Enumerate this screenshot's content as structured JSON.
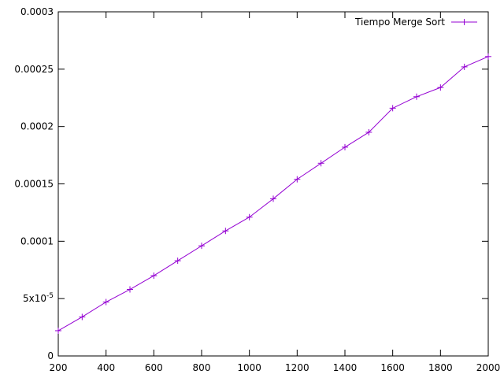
{
  "chart_data": {
    "type": "line",
    "title": "",
    "xlabel": "",
    "ylabel": "",
    "xlim": [
      200,
      2000
    ],
    "ylim": [
      0,
      0.0003
    ],
    "x_ticks": [
      {
        "value": 200,
        "label": "200"
      },
      {
        "value": 400,
        "label": "400"
      },
      {
        "value": 600,
        "label": "600"
      },
      {
        "value": 800,
        "label": "800"
      },
      {
        "value": 1000,
        "label": "1000"
      },
      {
        "value": 1200,
        "label": "1200"
      },
      {
        "value": 1400,
        "label": "1400"
      },
      {
        "value": 1600,
        "label": "1600"
      },
      {
        "value": 1800,
        "label": "1800"
      },
      {
        "value": 2000,
        "label": "2000"
      }
    ],
    "y_ticks": [
      {
        "value": 0,
        "label": "0"
      },
      {
        "value": 5e-05,
        "label": "5x10",
        "sup": "-5"
      },
      {
        "value": 0.0001,
        "label": "0.0001"
      },
      {
        "value": 0.00015,
        "label": "0.00015"
      },
      {
        "value": 0.0002,
        "label": "0.0002"
      },
      {
        "value": 0.00025,
        "label": "0.00025"
      },
      {
        "value": 0.0003,
        "label": "0.0003"
      }
    ],
    "grid": false,
    "legend_position": "top-right",
    "series": [
      {
        "name": "Tiempo Merge Sort",
        "color": "#9400d3",
        "marker": "plus",
        "x": [
          200,
          300,
          400,
          500,
          600,
          700,
          800,
          900,
          1000,
          1100,
          1200,
          1300,
          1400,
          1500,
          1600,
          1700,
          1800,
          1900,
          2000
        ],
        "y": [
          2.2e-05,
          3.4e-05,
          4.7e-05,
          5.8e-05,
          7e-05,
          8.3e-05,
          9.6e-05,
          0.000109,
          0.000121,
          0.000137,
          0.000154,
          0.000168,
          0.000182,
          0.000195,
          0.000216,
          0.000226,
          0.000234,
          0.000252,
          0.000261
        ]
      }
    ]
  }
}
